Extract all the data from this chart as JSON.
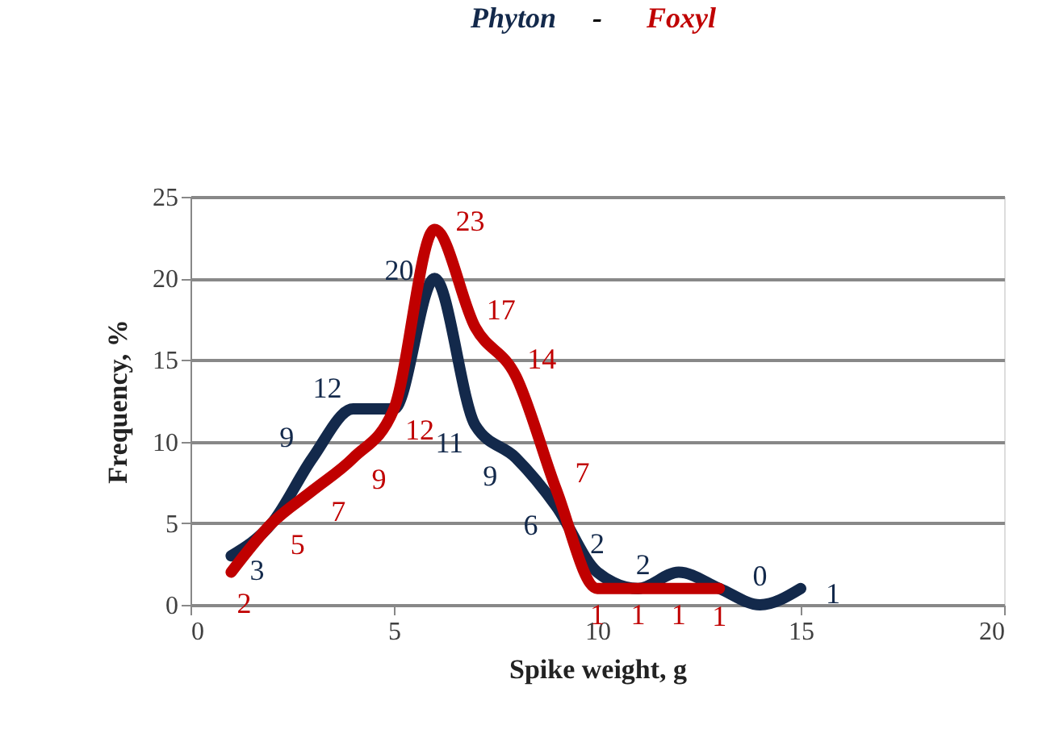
{
  "chart_data": {
    "type": "line",
    "title": "-",
    "xlabel": "Spike weight, g",
    "ylabel": "Frequency, %",
    "xlim": [
      0,
      20
    ],
    "xticks": [
      0,
      5,
      10,
      15,
      20
    ],
    "ylim": [
      0,
      25
    ],
    "yticks": [
      0,
      5,
      10,
      15,
      20,
      25
    ],
    "grid": "y",
    "legend": "top",
    "line_style": "solid",
    "series": [
      {
        "name": "Phyton",
        "color": "#13294b",
        "x": [
          1,
          2,
          3,
          4,
          5,
          6,
          7,
          8,
          9,
          10,
          11,
          12,
          13,
          14,
          15
        ],
        "values": [
          3,
          5,
          9,
          12,
          12,
          20,
          11,
          9,
          6,
          2,
          1,
          2,
          1,
          0,
          1
        ],
        "value_labels": [
          "3",
          null,
          "9",
          "12",
          null,
          "20",
          "11",
          "9",
          "6",
          "2",
          null,
          "2",
          null,
          "0",
          "1"
        ]
      },
      {
        "name": "Foxyl",
        "color": "#c00000",
        "x": [
          1,
          2,
          3,
          4,
          5,
          6,
          7,
          8,
          9,
          10,
          11,
          12,
          13
        ],
        "values": [
          2,
          5,
          7,
          9,
          12,
          23,
          17,
          14,
          7,
          1,
          1,
          1,
          1
        ],
        "value_labels": [
          "2",
          "5",
          "7",
          "9",
          "12",
          "23",
          "17",
          "14",
          "7",
          "1",
          "1",
          "1",
          "1"
        ]
      }
    ]
  }
}
